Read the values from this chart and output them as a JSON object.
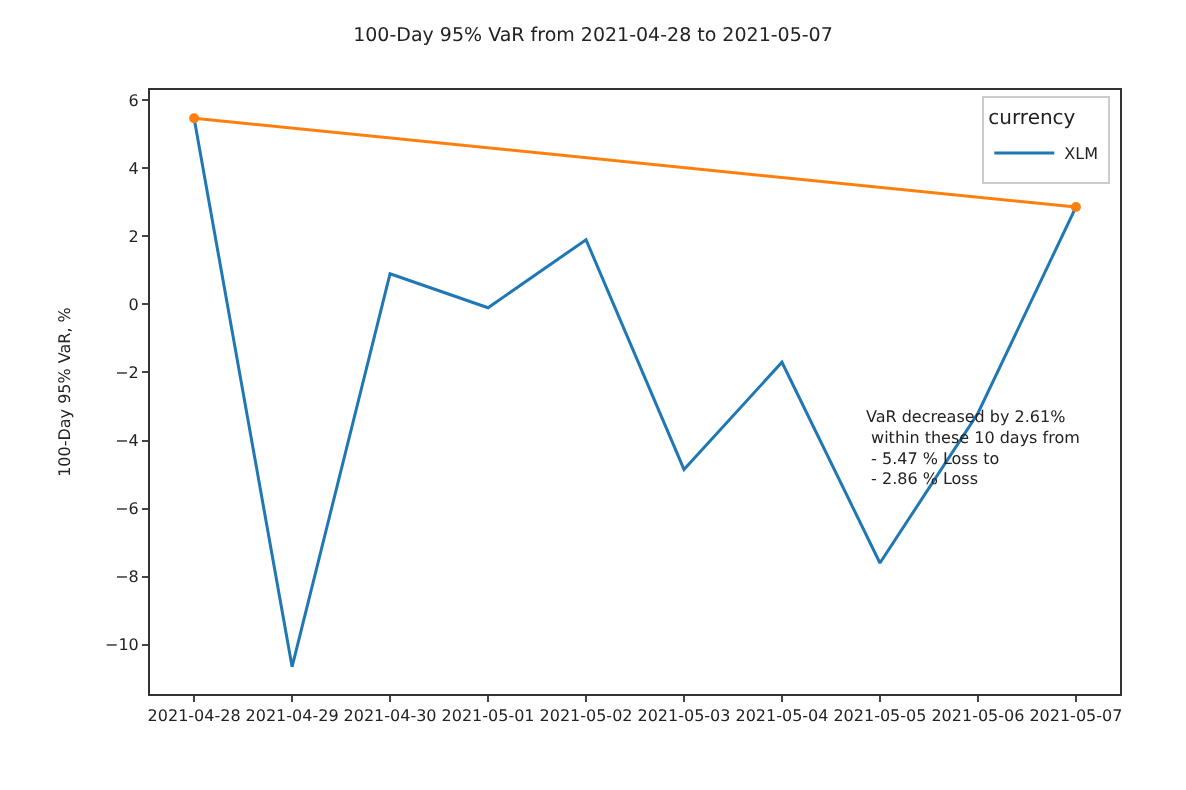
{
  "chart_data": {
    "type": "line",
    "title": "100-Day 95% VaR from 2021-04-28 to 2021-05-07",
    "ylabel": "100-Day 95% VaR, %",
    "categories": [
      "2021-04-28",
      "2021-04-29",
      "2021-04-30",
      "2021-05-01",
      "2021-05-02",
      "2021-05-03",
      "2021-05-04",
      "2021-05-05",
      "2021-05-06",
      "2021-05-07"
    ],
    "series": [
      {
        "name": "XLM",
        "color": "#1f77b4",
        "values": [
          5.47,
          -10.65,
          0.9,
          -0.1,
          1.9,
          -4.85,
          -1.7,
          -7.6,
          -3.2,
          2.86
        ]
      },
      {
        "color": "#ff7f0e",
        "marker": "circle",
        "values": [
          5.47,
          null,
          null,
          null,
          null,
          null,
          null,
          null,
          null,
          2.86
        ]
      }
    ],
    "ylim": [
      -11.45,
      6.3
    ],
    "yticks": [
      -10,
      -8,
      -6,
      -4,
      -2,
      0,
      2,
      4,
      6
    ],
    "legend": "top right",
    "legend_title": "currency",
    "annotations": [
      "VaR decreased by 2.61%\n within these 10 days from\n - 5.47 % Loss to\n - 2.86 % Loss"
    ]
  }
}
